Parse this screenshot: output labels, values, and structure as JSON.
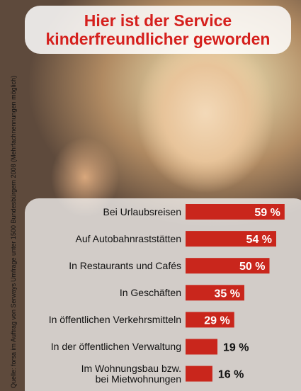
{
  "chart_data": {
    "type": "hbar",
    "title": "Hier ist der Service\nkinderfreundlicher geworden",
    "source": "Quelle: forsa im Auftrag von Serways",
    "note": "Umfrage unter 1500 Bundesbürgern 2008 (Mehrfachnennungen möglich)",
    "categories": [
      "Bei Urlaubsreisen",
      "Auf Autobahnraststätten",
      "In Restaurants und Cafés",
      "In Geschäften",
      "In öffentlichen Verkehrsmitteln",
      "In der öffentlichen Verwaltung",
      "Im Wohnungsbau bzw.\nbei Mietwohnungen"
    ],
    "values": [
      59,
      54,
      50,
      35,
      29,
      19,
      16
    ],
    "value_labels": [
      "59 %",
      "54 %",
      "50 %",
      "35 %",
      "29 %",
      "19 %",
      "16 %"
    ],
    "color": "#c9261c",
    "xlim": [
      0,
      100
    ]
  }
}
